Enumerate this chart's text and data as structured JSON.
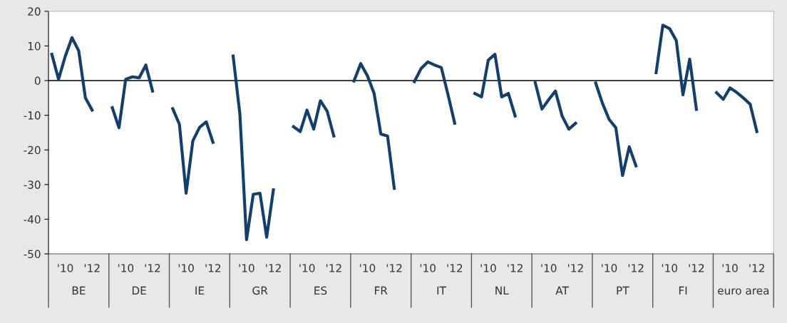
{
  "chart_data": {
    "type": "line",
    "categories": [
      null,
      null,
      "'10",
      null,
      null,
      null,
      "'12",
      null,
      null,
      null,
      null,
      "'10",
      null,
      null,
      null,
      "'12",
      null,
      null,
      null,
      null,
      "'10",
      null,
      null,
      null,
      "'12",
      null,
      null,
      null,
      null,
      "'10",
      null,
      null,
      null,
      "'12",
      null,
      null,
      null,
      null,
      "'10",
      null,
      null,
      null,
      "'12",
      null,
      null,
      null,
      null,
      "'10",
      null,
      null,
      null,
      "'12",
      null,
      null,
      null,
      null,
      "'10",
      null,
      null,
      null,
      "'12",
      null,
      null,
      null,
      null,
      "'10",
      null,
      null,
      null,
      "'12",
      null,
      null,
      null,
      null,
      "'10",
      null,
      null,
      null,
      "'12",
      null,
      null,
      null,
      null,
      "'10",
      null,
      null,
      null,
      "'12",
      null,
      null,
      null,
      null,
      "'10",
      null,
      null,
      null,
      "'12",
      null,
      null,
      null,
      null,
      "'10",
      null,
      null,
      null,
      "'12",
      null,
      null
    ],
    "series": [
      {
        "color": "#143f6b",
        "values": [
          7.6,
          0.4,
          7,
          12.4,
          8.6,
          -5,
          -8.5,
          null,
          null,
          -7.8,
          -13.6,
          0.4,
          1.1,
          0.8,
          4.5,
          -3,
          null,
          null,
          -8.1,
          -12.6,
          -32.5,
          -17.4,
          -13.5,
          -11.9,
          -17.8,
          null,
          null,
          7.1,
          -9.5,
          -45.9,
          -32.8,
          -32.5,
          -45.2,
          -31.5,
          null,
          null,
          -13.3,
          -14.7,
          -8.5,
          -14,
          -5.8,
          -8.8,
          -16,
          null,
          null,
          -0.1,
          4.9,
          1.4,
          -3.7,
          -15.4,
          -16,
          -31.1,
          null,
          null,
          -0.3,
          3.5,
          5.4,
          4.5,
          3.8,
          -4,
          -12.3,
          null,
          null,
          -3.7,
          -4.7,
          5.9,
          7.6,
          -4.7,
          -3.7,
          -10.2,
          null,
          null,
          -0.6,
          -8.2,
          -5.5,
          -3,
          -10.2,
          -14,
          -12.3,
          null,
          null,
          -0.7,
          -6.5,
          -11.2,
          -13.6,
          -27.4,
          -19.1,
          -24.6,
          null,
          null,
          2.3,
          16,
          15,
          11.6,
          -4.1,
          6.2,
          -8.3,
          null,
          null,
          -3.5,
          -5.4,
          -2.1,
          -3.4,
          -5,
          -6.8,
          -14.7,
          null,
          null
        ]
      }
    ],
    "ylim": [
      -50,
      20
    ],
    "yticks": [
      -50,
      -40,
      -30,
      -20,
      -10,
      0,
      10,
      20
    ],
    "ref_lines": [
      {
        "axis": "y",
        "value": 0,
        "color": "#000000"
      }
    ],
    "annotations": [
      "BE",
      "DE",
      "IE",
      "GR",
      "ES",
      "FR",
      "IT",
      "NL",
      "AT",
      "PT",
      "FI",
      "euro area"
    ],
    "grid": false,
    "legend": false,
    "marker": "none",
    "line_style": "solid"
  }
}
